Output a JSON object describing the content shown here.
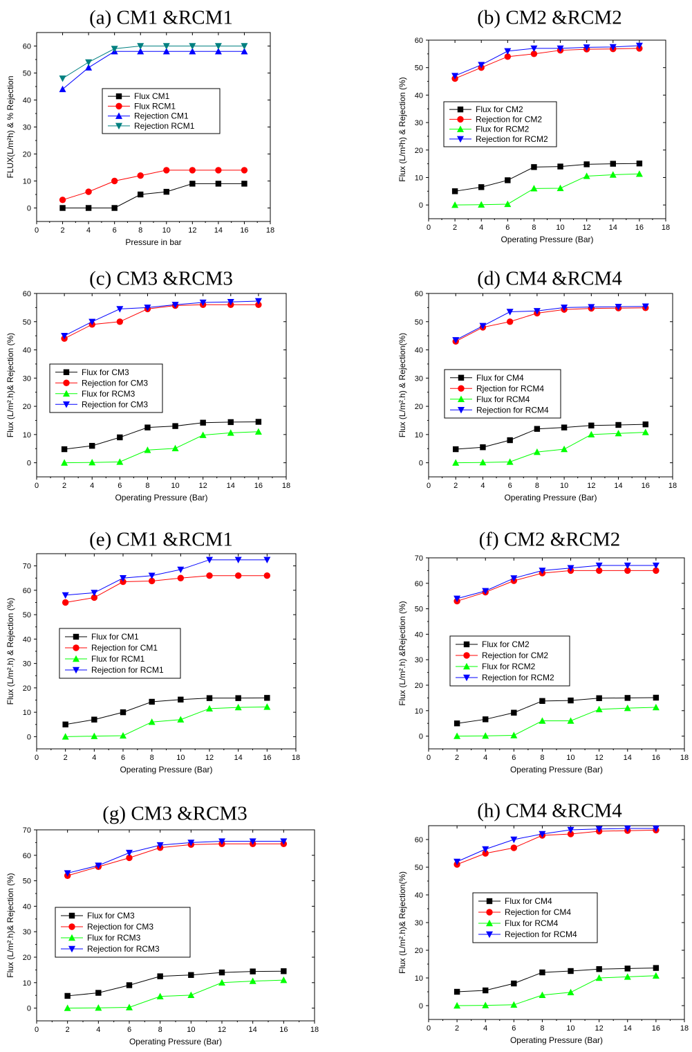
{
  "colors": {
    "black": "#000000",
    "red": "#ff0000",
    "blue": "#0000ff",
    "green": "#00ff00",
    "teal": "#008080"
  },
  "chart_data": [
    {
      "id": "a",
      "type": "line",
      "title": "(a) CM1 &RCM1",
      "xlabel": "Pressure in bar",
      "ylabel": "FLUX(L/m²h) & % Rejection",
      "xlim": [
        0,
        18
      ],
      "ylim": [
        -5,
        65
      ],
      "xticks": [
        0,
        2,
        4,
        6,
        8,
        10,
        12,
        14,
        16,
        18
      ],
      "yticks": [
        0,
        10,
        20,
        30,
        40,
        50,
        60
      ],
      "legend_placement": "center",
      "x": [
        2,
        4,
        6,
        8,
        10,
        12,
        14,
        16
      ],
      "series": [
        {
          "name": "Flux CM1",
          "color": "#000000",
          "marker": "square",
          "values": [
            0,
            0,
            0,
            5,
            6,
            9,
            9,
            9
          ]
        },
        {
          "name": "Flux RCM1",
          "color": "#ff0000",
          "marker": "circle",
          "values": [
            3,
            6,
            10,
            12,
            14,
            14,
            14,
            14
          ]
        },
        {
          "name": "Rejection CM1",
          "color": "#0000ff",
          "marker": "triangle-up",
          "values": [
            44,
            52,
            58,
            58,
            58,
            58,
            58,
            58
          ]
        },
        {
          "name": "Rejection RCM1",
          "color": "#008080",
          "marker": "triangle-down",
          "values": [
            48,
            54,
            59,
            60,
            60,
            60,
            60,
            60
          ]
        }
      ]
    },
    {
      "id": "b",
      "type": "line",
      "title": "(b) CM2 &RCM2",
      "xlabel": "Operating Pressure (Bar)",
      "ylabel": "Flux (L/m²h) & Rejection (%)",
      "xlim": [
        0,
        18
      ],
      "ylim": [
        -5,
        60
      ],
      "xticks": [
        0,
        2,
        4,
        6,
        8,
        10,
        12,
        14,
        16,
        18
      ],
      "yticks": [
        0,
        10,
        20,
        30,
        40,
        50,
        60
      ],
      "legend_placement": "center-left",
      "x": [
        2,
        4,
        6,
        8,
        10,
        12,
        14,
        16
      ],
      "series": [
        {
          "name": "Flux for CM2",
          "color": "#000000",
          "marker": "square",
          "values": [
            5,
            6.5,
            9,
            13.8,
            14,
            14.8,
            15,
            15.1
          ]
        },
        {
          "name": "Rejection for CM2",
          "color": "#ff0000",
          "marker": "circle",
          "values": [
            46,
            50,
            54,
            55,
            56.3,
            56.7,
            56.8,
            57
          ]
        },
        {
          "name": "Flux for RCM2",
          "color": "#00ff00",
          "marker": "triangle-up",
          "values": [
            0,
            0.1,
            0.3,
            6,
            6.1,
            10.5,
            11,
            11.3
          ]
        },
        {
          "name": "Rejection for RCM2",
          "color": "#0000ff",
          "marker": "triangle-down",
          "values": [
            47,
            51,
            56,
            57,
            57,
            57.4,
            57.5,
            58
          ]
        }
      ]
    },
    {
      "id": "c",
      "type": "line",
      "title": "(c) CM3 &RCM3",
      "xlabel": "Operating Pressure (Bar)",
      "ylabel": "Flux (L/m².h)& Rejection (%)",
      "xlim": [
        0,
        18
      ],
      "ylim": [
        -5,
        60
      ],
      "xticks": [
        0,
        2,
        4,
        6,
        8,
        10,
        12,
        14,
        16,
        18
      ],
      "yticks": [
        0,
        10,
        20,
        30,
        40,
        50,
        60
      ],
      "legend_placement": "center-left",
      "x": [
        2,
        4,
        6,
        8,
        10,
        12,
        14,
        16
      ],
      "series": [
        {
          "name": "Flux for CM3",
          "color": "#000000",
          "marker": "square",
          "values": [
            4.8,
            6,
            9,
            12.5,
            13,
            14.2,
            14.4,
            14.5
          ]
        },
        {
          "name": "Rejection for CM3",
          "color": "#ff0000",
          "marker": "circle",
          "values": [
            44,
            49,
            50,
            54.5,
            55.7,
            56,
            56,
            56
          ]
        },
        {
          "name": "Flux for RCM3",
          "color": "#00ff00",
          "marker": "triangle-up",
          "values": [
            0,
            0.1,
            0.3,
            4.5,
            5.1,
            9.8,
            10.6,
            11
          ]
        },
        {
          "name": "Rejection for CM3",
          "color": "#0000ff",
          "marker": "triangle-down",
          "values": [
            45,
            50,
            54.5,
            55,
            56,
            56.8,
            57,
            57.3
          ]
        }
      ]
    },
    {
      "id": "d",
      "type": "line",
      "title": "(d) CM4 &RCM4",
      "xlabel": "Operating Pressure (Bar)",
      "ylabel": "Flux (L/m².h) & Rejection(%)",
      "xlim": [
        0,
        18
      ],
      "ylim": [
        -5,
        60
      ],
      "xticks": [
        0,
        2,
        4,
        6,
        8,
        10,
        12,
        14,
        16,
        18
      ],
      "yticks": [
        0,
        10,
        20,
        30,
        40,
        50,
        60
      ],
      "legend_placement": "center-left",
      "x": [
        2,
        4,
        6,
        8,
        10,
        12,
        14,
        16
      ],
      "series": [
        {
          "name": "Flux for CM4",
          "color": "#000000",
          "marker": "square",
          "values": [
            4.8,
            5.5,
            8,
            12,
            12.5,
            13.2,
            13.4,
            13.6
          ]
        },
        {
          "name": "Rjection for RCM4",
          "color": "#ff0000",
          "marker": "circle",
          "values": [
            43,
            48,
            50,
            53,
            54.3,
            54.7,
            54.8,
            54.9
          ]
        },
        {
          "name": "Flux for RCM4",
          "color": "#00ff00",
          "marker": "triangle-up",
          "values": [
            0,
            0.1,
            0.3,
            3.8,
            4.8,
            10,
            10.4,
            10.8
          ]
        },
        {
          "name": "Rejection for RCM4",
          "color": "#0000ff",
          "marker": "triangle-down",
          "values": [
            43.5,
            48.5,
            53.5,
            53.8,
            55,
            55.2,
            55.3,
            55.4
          ]
        }
      ]
    },
    {
      "id": "e",
      "type": "line",
      "title": "(e) CM1 &RCM1",
      "xlabel": "Operating Pressure (Bar)",
      "ylabel": "Flux (L/m².h) & Rejection (%)",
      "xlim": [
        0,
        18
      ],
      "ylim": [
        -5,
        75
      ],
      "xticks": [
        0,
        2,
        4,
        6,
        8,
        10,
        12,
        14,
        16,
        18
      ],
      "yticks": [
        0,
        10,
        20,
        30,
        40,
        50,
        60,
        70
      ],
      "legend_placement": "center-left",
      "x": [
        2,
        4,
        6,
        8,
        10,
        12,
        14,
        16
      ],
      "series": [
        {
          "name": "Flux for CM1",
          "color": "#000000",
          "marker": "square",
          "values": [
            5,
            7,
            10,
            14.3,
            15.2,
            15.8,
            15.8,
            15.9
          ]
        },
        {
          "name": "Rejection for CM1",
          "color": "#ff0000",
          "marker": "circle",
          "values": [
            55,
            57,
            63.5,
            63.8,
            65,
            66,
            66,
            66
          ]
        },
        {
          "name": "Flux for RCM1",
          "color": "#00ff00",
          "marker": "triangle-up",
          "values": [
            0,
            0.2,
            0.4,
            6,
            7,
            11.5,
            12,
            12.2
          ]
        },
        {
          "name": "Rejection for RCM1",
          "color": "#0000ff",
          "marker": "triangle-down",
          "values": [
            58,
            59,
            65,
            66,
            68.5,
            72.5,
            72.5,
            72.5
          ]
        }
      ]
    },
    {
      "id": "f",
      "type": "line",
      "title": "(f) CM2 &RCM2",
      "xlabel": "Operating Pressure (Bar)",
      "ylabel": "Flux (L/m².h) &Rejection (%)",
      "xlim": [
        0,
        18
      ],
      "ylim": [
        -5,
        70
      ],
      "xticks": [
        0,
        2,
        4,
        6,
        8,
        10,
        12,
        14,
        16,
        18
      ],
      "yticks": [
        0,
        10,
        20,
        30,
        40,
        50,
        60,
        70
      ],
      "legend_placement": "center-left",
      "x": [
        2,
        4,
        6,
        8,
        10,
        12,
        14,
        16
      ],
      "series": [
        {
          "name": "Flux for CM2",
          "color": "#000000",
          "marker": "square",
          "values": [
            5,
            6.6,
            9.2,
            13.8,
            14,
            14.9,
            15,
            15.1
          ]
        },
        {
          "name": "Rejection for CM2",
          "color": "#ff0000",
          "marker": "circle",
          "values": [
            53,
            56.5,
            61,
            64,
            65,
            65,
            65,
            65
          ]
        },
        {
          "name": "Flux for RCM2",
          "color": "#00ff00",
          "marker": "triangle-up",
          "values": [
            0,
            0.1,
            0.3,
            6,
            6,
            10.5,
            11,
            11.3
          ]
        },
        {
          "name": "Rejection for RCM2",
          "color": "#0000ff",
          "marker": "triangle-down",
          "values": [
            54,
            57,
            62,
            65,
            66,
            67,
            67,
            67
          ]
        }
      ]
    },
    {
      "id": "g",
      "type": "line",
      "title": "(g) CM3 &RCM3",
      "xlabel": "Operating Pressure (Bar)",
      "ylabel": "Flux (L/m².h)& Rejection (%)",
      "xlim": [
        0,
        18
      ],
      "ylim": [
        -5,
        70
      ],
      "xticks": [
        0,
        2,
        4,
        6,
        8,
        10,
        12,
        14,
        16,
        18
      ],
      "yticks": [
        0,
        10,
        20,
        30,
        40,
        50,
        60,
        70
      ],
      "legend_placement": "center-left",
      "x": [
        2,
        4,
        6,
        8,
        10,
        12,
        14,
        16
      ],
      "series": [
        {
          "name": "Flux for CM3",
          "color": "#000000",
          "marker": "square",
          "values": [
            4.8,
            6,
            9,
            12.5,
            13,
            14,
            14.4,
            14.5
          ]
        },
        {
          "name": "Rejection for CM3",
          "color": "#ff0000",
          "marker": "circle",
          "values": [
            52,
            55.5,
            59,
            63,
            64.2,
            64.5,
            64.5,
            64.5
          ]
        },
        {
          "name": "Flux for RCM3",
          "color": "#00ff00",
          "marker": "triangle-up",
          "values": [
            0,
            0.1,
            0.3,
            4.6,
            5.1,
            10,
            10.6,
            11
          ]
        },
        {
          "name": "Rejection for RCM3",
          "color": "#0000ff",
          "marker": "triangle-down",
          "values": [
            53,
            56,
            61,
            64,
            65,
            65.5,
            65.5,
            65.5
          ]
        }
      ]
    },
    {
      "id": "h",
      "type": "line",
      "title": "(h) CM4 &RCM4",
      "xlabel": "Operating Pressure (Bar)",
      "ylabel": "Flux (L/m².h)& Rejection(%)",
      "xlim": [
        0,
        18
      ],
      "ylim": [
        -5,
        65
      ],
      "xticks": [
        0,
        2,
        4,
        6,
        8,
        10,
        12,
        14,
        16,
        18
      ],
      "yticks": [
        0,
        10,
        20,
        30,
        40,
        50,
        60
      ],
      "legend_placement": "center",
      "x": [
        2,
        4,
        6,
        8,
        10,
        12,
        14,
        16
      ],
      "series": [
        {
          "name": "Flux for CM4",
          "color": "#000000",
          "marker": "square",
          "values": [
            5,
            5.5,
            8,
            12,
            12.5,
            13.2,
            13.4,
            13.6
          ]
        },
        {
          "name": "Rejection for CM4",
          "color": "#ff0000",
          "marker": "circle",
          "values": [
            51,
            55,
            57,
            61.5,
            62,
            63,
            63.2,
            63.4
          ]
        },
        {
          "name": "Flux for RCM4",
          "color": "#00ff00",
          "marker": "triangle-up",
          "values": [
            0,
            0.1,
            0.3,
            3.8,
            4.8,
            10,
            10.4,
            10.8
          ]
        },
        {
          "name": "Rejection for RCM4",
          "color": "#0000ff",
          "marker": "triangle-down",
          "values": [
            52,
            56.5,
            60,
            62,
            63.5,
            63.8,
            64,
            64
          ]
        }
      ]
    }
  ]
}
